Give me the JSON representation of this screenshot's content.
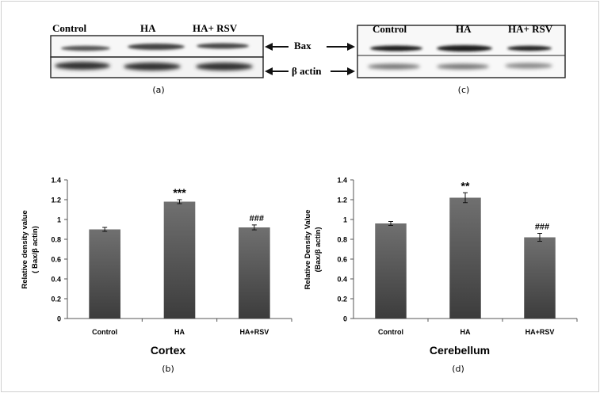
{
  "blots": {
    "cortex": {
      "labels": [
        "Control",
        "HA",
        "HA+ RSV"
      ],
      "caption": "(a)"
    },
    "cerebellum": {
      "labels": [
        "Control",
        "HA",
        "HA+ RSV"
      ],
      "caption": "(c)"
    },
    "bands": {
      "bax": "Bax",
      "actin": "β actin"
    }
  },
  "chart_data": [
    {
      "type": "bar",
      "categories": [
        "Control",
        "HA",
        "HA+RSV"
      ],
      "values": [
        0.9,
        1.18,
        0.92
      ],
      "errors": [
        0.02,
        0.02,
        0.025
      ],
      "annotations": [
        "",
        "***",
        "###"
      ],
      "title": "Cortex",
      "caption": "(b)",
      "xlabel": "",
      "ylabel_line1": "Relative density value",
      "ylabel_line2": "( Bax/β actin)",
      "ylim": [
        0,
        1.4
      ],
      "ticks": [
        "0",
        "0.2",
        "0.4",
        "0.6",
        "0.8",
        "1",
        "1.2",
        "1.4"
      ],
      "grid": false
    },
    {
      "type": "bar",
      "categories": [
        "Control",
        "HA",
        "HA+RSV"
      ],
      "values": [
        0.96,
        1.22,
        0.82
      ],
      "errors": [
        0.02,
        0.05,
        0.04
      ],
      "annotations": [
        "",
        "**",
        "###"
      ],
      "title": "Cerebellum",
      "caption": "(d)",
      "xlabel": "",
      "ylabel_line1": "Relative Density Value",
      "ylabel_line2": "(Bax/β actin)",
      "ylim": [
        0,
        1.4
      ],
      "ticks": [
        "0",
        "0.2",
        "0.4",
        "0.6",
        "0.8",
        "1",
        "1.2",
        "1.4"
      ],
      "grid": false
    }
  ],
  "colors": {
    "bar_top": "#6b6b6b",
    "bar_bottom": "#3a3a3a",
    "band": "#2a2a2a",
    "axis": "#555555"
  }
}
